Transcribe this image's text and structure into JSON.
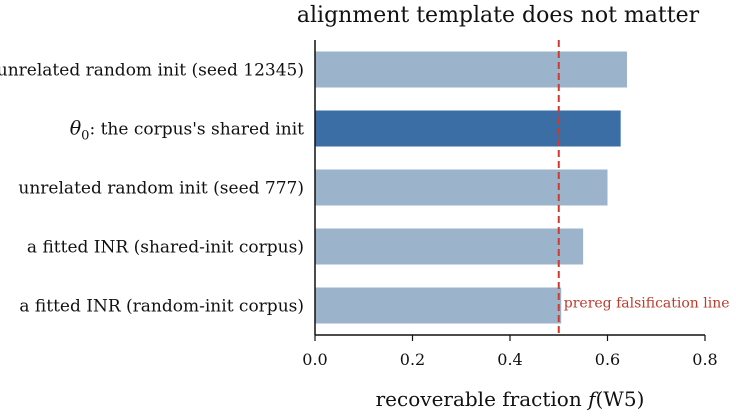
{
  "chart_data": {
    "type": "bar",
    "orientation": "horizontal",
    "title": "alignment template does not matter",
    "xlabel_prefix": "recoverable fraction ",
    "xlabel_math": "f",
    "xlabel_suffix": "(W5)",
    "categories": [
      "unrelated random init (seed 12345)",
      "the corpus's shared init",
      "unrelated random init (seed 777)",
      "a fitted INR (shared-init corpus)",
      "a fitted INR (random-init corpus)"
    ],
    "highlight_prefix": "θ",
    "highlight_subscript": "0",
    "values": [
      0.64,
      0.627,
      0.6,
      0.55,
      0.505
    ],
    "highlight_index": 1,
    "xlim": [
      0,
      0.8
    ],
    "xticks": [
      "0.0",
      "0.2",
      "0.4",
      "0.6",
      "0.8"
    ],
    "xtick_values": [
      0,
      0.2,
      0.4,
      0.6,
      0.8
    ],
    "reference_line": {
      "value": 0.5,
      "label": "prereg falsification line"
    },
    "grid": false,
    "colors": {
      "bar": "#9cb3cc",
      "highlight_bar": "#3a6ea5",
      "reference_line": "#d0392b",
      "reference_text": "#c0392b",
      "axis": "#111111"
    }
  }
}
